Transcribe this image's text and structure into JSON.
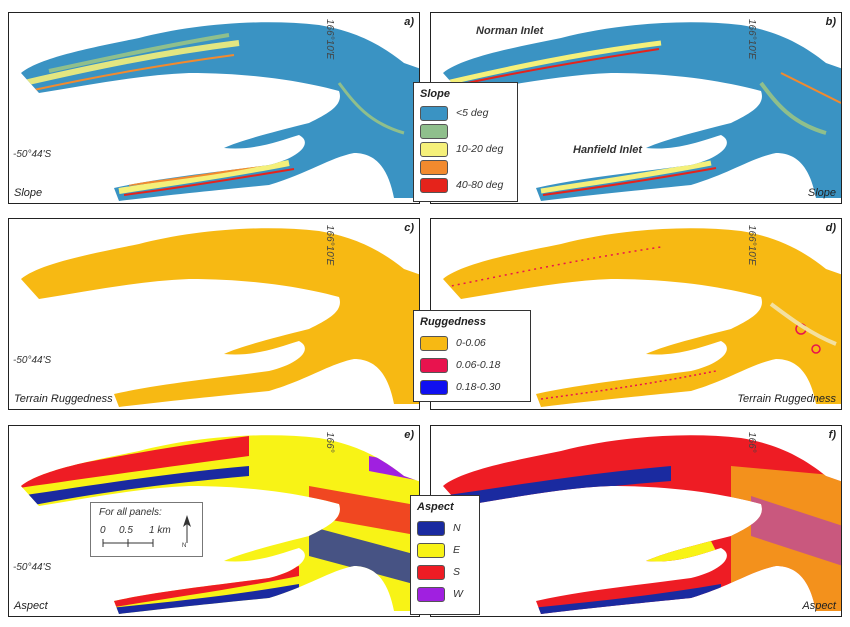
{
  "panels": {
    "a": {
      "letter": "a)",
      "label": "Slope",
      "lon": "166°10'E",
      "lat": "-50°44'S"
    },
    "b": {
      "letter": "b)",
      "label": "Slope",
      "lon": "166°10'E",
      "places": [
        "Norman Inlet",
        "Hanfield Inlet"
      ]
    },
    "c": {
      "letter": "c)",
      "label": "Terrain Ruggedness",
      "lon": "166°10'E",
      "lat": "-50°44'S"
    },
    "d": {
      "letter": "d)",
      "label": "Terrain Ruggedness",
      "lon": "166°10'E"
    },
    "e": {
      "letter": "e)",
      "label": "Aspect",
      "lon": "166°",
      "lat": "-50°44'S"
    },
    "f": {
      "letter": "f)",
      "label": "Aspect",
      "lon": "166°"
    }
  },
  "legends": {
    "slope": {
      "title": "Slope",
      "items": [
        {
          "label": "<5 deg",
          "color": "#3a93c3"
        },
        {
          "label": "",
          "color": "#8fbf8c"
        },
        {
          "label": "10-20 deg",
          "color": "#f5f07a"
        },
        {
          "label": "",
          "color": "#f28a2e"
        },
        {
          "label": "40-80 deg",
          "color": "#e5231b"
        }
      ]
    },
    "ruggedness": {
      "title": "Ruggedness",
      "items": [
        {
          "label": "0-0.06",
          "color": "#f7b913"
        },
        {
          "label": "0.06-0.18",
          "color": "#e8134e"
        },
        {
          "label": "0.18-0.30",
          "color": "#1010f0"
        }
      ]
    },
    "aspect": {
      "title": "Aspect",
      "items": [
        {
          "label": "N",
          "color": "#1a2aa0"
        },
        {
          "label": "E",
          "color": "#f8f316"
        },
        {
          "label": "S",
          "color": "#ee1c24"
        },
        {
          "label": "W",
          "color": "#a020e0"
        }
      ]
    }
  },
  "scalebar": {
    "title": "For all panels:",
    "ticks": [
      "0",
      "0.5",
      "1 km"
    ],
    "north": "N"
  },
  "colors": {
    "slope_base": "#3a93c3",
    "slope_edge": "#f5f07a",
    "slope_mid": "#8fbf8c",
    "slope_steep": "#e5231b",
    "slope_orange": "#f28a2e",
    "rug_base": "#f7b913",
    "rug_mid": "#e8134e",
    "aspect_n": "#1a2aa0",
    "aspect_e": "#f8f316",
    "aspect_s": "#ee1c24",
    "aspect_w": "#a020e0"
  }
}
